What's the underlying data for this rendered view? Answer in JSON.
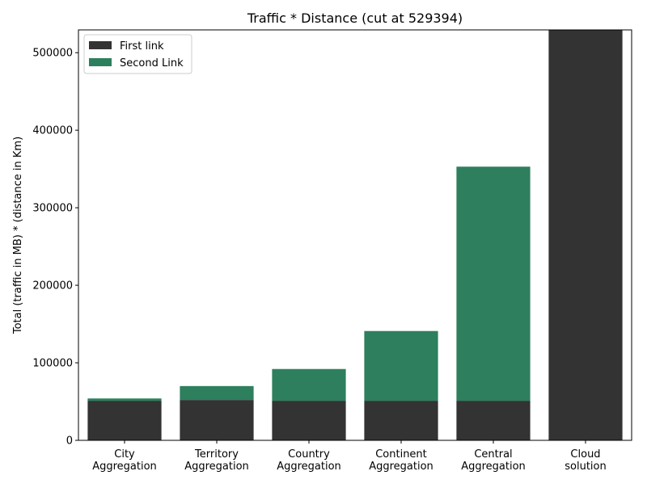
{
  "chart_data": {
    "type": "bar",
    "stacked": true,
    "title": "Traffic * Distance (cut at 529394)",
    "xlabel": "",
    "ylabel": "Total (traffic in MB) * (distance in Km)",
    "ylim": [
      0,
      529394
    ],
    "yticks": [
      0,
      100000,
      200000,
      300000,
      400000,
      500000
    ],
    "ytick_labels": [
      "0",
      "100000",
      "200000",
      "300000",
      "400000",
      "500000"
    ],
    "grid": false,
    "legend_position": "top-left",
    "categories": [
      [
        "City",
        "Aggregation"
      ],
      [
        "Territory",
        "Aggregation"
      ],
      [
        "Country",
        "Aggregation"
      ],
      [
        "Continent",
        "Aggregation"
      ],
      [
        "Central",
        "Aggregation"
      ],
      [
        "Cloud",
        "solution"
      ]
    ],
    "series": [
      {
        "name": "First link",
        "color": "#333333",
        "values": [
          51000,
          52000,
          51000,
          51000,
          51000,
          529394
        ]
      },
      {
        "name": "Second Link",
        "color": "#2e7f5e",
        "values": [
          3000,
          18000,
          41000,
          90000,
          302000,
          0
        ]
      }
    ]
  }
}
